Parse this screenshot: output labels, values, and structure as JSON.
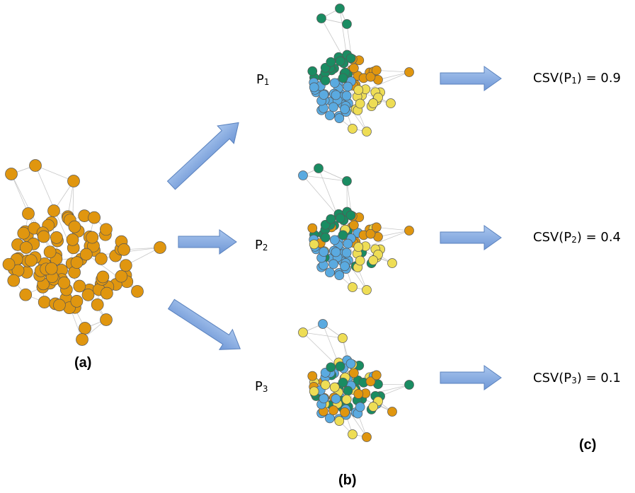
{
  "panels": {
    "a_label": "(a)",
    "b_label": "(b)",
    "c_label": "(c)"
  },
  "partitions": [
    {
      "prefix": "P",
      "sub": "1",
      "csv_prefix": "CSV(P",
      "csv_suffix": ") = 0.9"
    },
    {
      "prefix": "P",
      "sub": "2",
      "csv_prefix": "CSV(P",
      "csv_suffix": ") = 0.4"
    },
    {
      "prefix": "P",
      "sub": "3",
      "csv_prefix": "CSV(P",
      "csv_suffix": ") = 0.1"
    }
  ],
  "colors": {
    "orange": "#E0960F",
    "green": "#1A8C62",
    "blue": "#5AAAE0",
    "yellow": "#EEDD55",
    "edge": "#C8C8C8",
    "node_stroke": "#555555",
    "arrow_fill": "#7EA6E0",
    "arrow_stroke": "#5A82BE"
  }
}
